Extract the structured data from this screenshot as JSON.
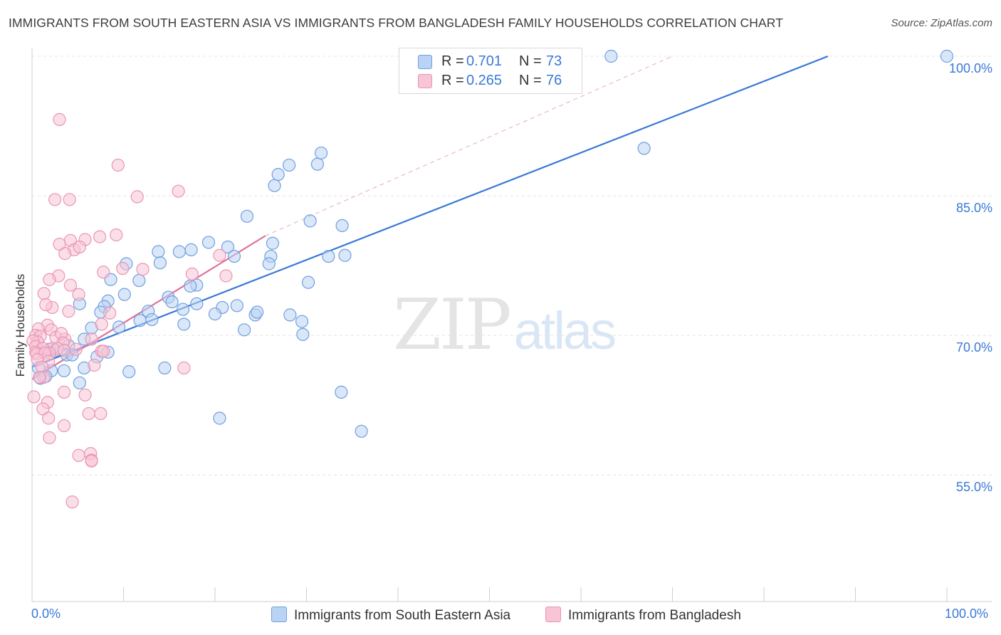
{
  "header": {
    "title": "IMMIGRANTS FROM SOUTH EASTERN ASIA VS IMMIGRANTS FROM BANGLADESH FAMILY HOUSEHOLDS CORRELATION CHART",
    "source": "Source: ZipAtlas.com"
  },
  "watermark": {
    "zip": "ZIP",
    "atlas": "atlas"
  },
  "colors": {
    "blue": "#3a78d6",
    "blue_fill": "#b9d3f4",
    "blue_stroke": "#6f9fdf",
    "pink": "#e0739b",
    "pink_fill": "#f7c5d5",
    "pink_stroke": "#eb94b4",
    "grid": "#e4e4e4"
  },
  "legend": {
    "r_label": "R =",
    "n_label": "N =",
    "series": [
      {
        "r": "0.701",
        "n": "73"
      },
      {
        "r": "0.265",
        "n": "76"
      }
    ]
  },
  "chart_data": {
    "type": "scatter",
    "title": "IMMIGRANTS FROM SOUTH EASTERN ASIA VS IMMIGRANTS FROM BANGLADESH FAMILY HOUSEHOLDS CORRELATION CHART",
    "xlabel": "",
    "ylabel": "Family Households",
    "xlim": [
      0,
      100
    ],
    "ylim": [
      41.4,
      100
    ],
    "x_tick_labels": [
      "0.0%",
      "100.0%"
    ],
    "y_ticks": [
      {
        "value": 100,
        "label": "100.0%"
      },
      {
        "value": 85,
        "label": "85.0%"
      },
      {
        "value": 70,
        "label": "70.0%"
      },
      {
        "value": 55,
        "label": "55.0%"
      }
    ],
    "grid": true,
    "legend_position": "top-center",
    "series": [
      {
        "name": "Immigrants from South Eastern Asia",
        "color": "#3a78d6",
        "r": 0.701,
        "n": 73,
        "trend": {
          "x": [
            0,
            87
          ],
          "y": [
            66.6,
            100
          ]
        },
        "points": [
          [
            63.3,
            100
          ],
          [
            100,
            100
          ],
          [
            66.9,
            90.1
          ],
          [
            31.2,
            88.4
          ],
          [
            26.9,
            87.3
          ],
          [
            26.5,
            86.1
          ],
          [
            28.1,
            88.3
          ],
          [
            31.6,
            89.6
          ],
          [
            23.5,
            82.8
          ],
          [
            30.4,
            82.3
          ],
          [
            33.9,
            81.8
          ],
          [
            19.3,
            80
          ],
          [
            26.1,
            78.5
          ],
          [
            26.3,
            79.9
          ],
          [
            21.4,
            79.5
          ],
          [
            17.4,
            79.2
          ],
          [
            22.1,
            78.5
          ],
          [
            13.8,
            79
          ],
          [
            16.1,
            79
          ],
          [
            32.4,
            78.5
          ],
          [
            34.2,
            78.6
          ],
          [
            14.0,
            77.8
          ],
          [
            10.3,
            77.7
          ],
          [
            25.9,
            77.7
          ],
          [
            8.6,
            76
          ],
          [
            11.7,
            75.9
          ],
          [
            18.0,
            75.4
          ],
          [
            17.3,
            75.3
          ],
          [
            30.2,
            75.7
          ],
          [
            14.9,
            74.1
          ],
          [
            10.1,
            74.4
          ],
          [
            5.2,
            73.4
          ],
          [
            15.3,
            73.6
          ],
          [
            22.4,
            73.2
          ],
          [
            8.3,
            73.7
          ],
          [
            16.5,
            72.8
          ],
          [
            20.8,
            73
          ],
          [
            12.7,
            72.6
          ],
          [
            24.4,
            72.2
          ],
          [
            24.6,
            72.5
          ],
          [
            7.9,
            73.1
          ],
          [
            18.0,
            73.4
          ],
          [
            7.5,
            72.5
          ],
          [
            20.0,
            72.3
          ],
          [
            28.2,
            72.2
          ],
          [
            16.6,
            71.2
          ],
          [
            13.1,
            71.7
          ],
          [
            29.5,
            71.5
          ],
          [
            11.8,
            71.6
          ],
          [
            9.5,
            70.9
          ],
          [
            6.5,
            70.8
          ],
          [
            29.6,
            70.1
          ],
          [
            23.2,
            70.6
          ],
          [
            5.7,
            69.6
          ],
          [
            4.0,
            68.9
          ],
          [
            1.9,
            68.5
          ],
          [
            3.8,
            67.9
          ],
          [
            7.1,
            67.7
          ],
          [
            4.4,
            67.9
          ],
          [
            8.3,
            68.2
          ],
          [
            2.6,
            68.4
          ],
          [
            2.1,
            66.2
          ],
          [
            0.7,
            66.5
          ],
          [
            5.7,
            66.5
          ],
          [
            14.5,
            66.5
          ],
          [
            10.6,
            66.1
          ],
          [
            3.5,
            66.2
          ],
          [
            0.9,
            65.4
          ],
          [
            1.5,
            65.6
          ],
          [
            5.2,
            64.9
          ],
          [
            33.8,
            63.9
          ],
          [
            20.5,
            61.1
          ],
          [
            36.0,
            59.7
          ]
        ]
      },
      {
        "name": "Immigrants from Bangladesh",
        "color": "#e0739b",
        "r": 0.265,
        "n": 76,
        "trend": {
          "x": [
            0,
            25.5
          ],
          "y": [
            65.3,
            80.7
          ]
        },
        "trend_ext": {
          "x": [
            25.5,
            70
          ],
          "y": [
            80.7,
            100
          ]
        },
        "points": [
          [
            3.0,
            93.2
          ],
          [
            9.4,
            88.3
          ],
          [
            11.5,
            84.9
          ],
          [
            16.0,
            85.5
          ],
          [
            2.5,
            84.6
          ],
          [
            4.1,
            84.6
          ],
          [
            9.2,
            80.8
          ],
          [
            7.4,
            80.6
          ],
          [
            4.2,
            80.2
          ],
          [
            5.8,
            80.3
          ],
          [
            3.0,
            79.8
          ],
          [
            4.6,
            79.2
          ],
          [
            5.2,
            79.5
          ],
          [
            3.6,
            78.8
          ],
          [
            20.5,
            78.6
          ],
          [
            2.9,
            76.4
          ],
          [
            12.1,
            77.1
          ],
          [
            17.5,
            76.6
          ],
          [
            21.2,
            76.4
          ],
          [
            9.9,
            77.2
          ],
          [
            7.8,
            76.8
          ],
          [
            1.9,
            76.0
          ],
          [
            4.2,
            75.4
          ],
          [
            1.3,
            74.5
          ],
          [
            5.1,
            74.4
          ],
          [
            2.2,
            73.0
          ],
          [
            1.5,
            73.3
          ],
          [
            4.0,
            72.6
          ],
          [
            8.5,
            72.4
          ],
          [
            7.6,
            71.2
          ],
          [
            1.7,
            71.1
          ],
          [
            0.7,
            70.7
          ],
          [
            2.1,
            70.6
          ],
          [
            0.4,
            70.0
          ],
          [
            2.6,
            69.8
          ],
          [
            3.6,
            69.6
          ],
          [
            6.5,
            69.6
          ],
          [
            0.9,
            69.9
          ],
          [
            3.2,
            70.2
          ],
          [
            0.6,
            69.3
          ],
          [
            0.1,
            69.4
          ],
          [
            4.8,
            68.5
          ],
          [
            3.4,
            69.2
          ],
          [
            0.4,
            68.8
          ],
          [
            2.2,
            68.6
          ],
          [
            1.2,
            68.6
          ],
          [
            2.8,
            68.6
          ],
          [
            3.5,
            68.4
          ],
          [
            7.6,
            68.3
          ],
          [
            0.4,
            68.2
          ],
          [
            1.9,
            68.1
          ],
          [
            7.8,
            68.3
          ],
          [
            0.5,
            68.0
          ],
          [
            1.4,
            68.1
          ],
          [
            16.6,
            66.5
          ],
          [
            0.6,
            67.4
          ],
          [
            1.8,
            67.2
          ],
          [
            1.1,
            66.6
          ],
          [
            6.8,
            66.8
          ],
          [
            1.3,
            65.5
          ],
          [
            0.8,
            65.5
          ],
          [
            0.2,
            63.4
          ],
          [
            3.5,
            63.9
          ],
          [
            1.7,
            62.8
          ],
          [
            5.8,
            63.6
          ],
          [
            1.2,
            62.1
          ],
          [
            7.5,
            61.6
          ],
          [
            6.2,
            61.6
          ],
          [
            1.8,
            61.1
          ],
          [
            3.5,
            60.3
          ],
          [
            1.9,
            59.0
          ],
          [
            5.1,
            57.1
          ],
          [
            6.4,
            57.3
          ],
          [
            6.5,
            56.6
          ],
          [
            6.5,
            56.5
          ],
          [
            4.4,
            52.1
          ]
        ]
      }
    ]
  },
  "bottom_legend": {
    "items": [
      {
        "label": "Immigrants from South Eastern Asia"
      },
      {
        "label": "Immigrants from Bangladesh"
      }
    ]
  }
}
